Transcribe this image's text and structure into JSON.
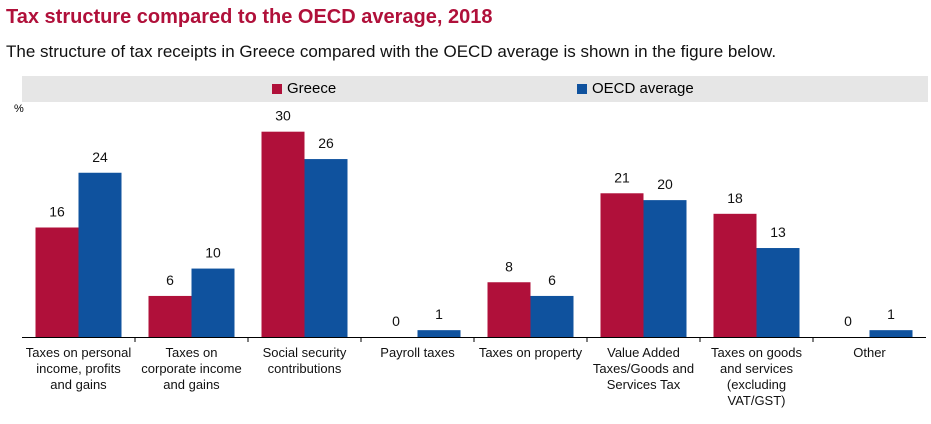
{
  "title": "Tax structure compared to the OECD average, 2018",
  "subtitle": "The structure of tax receipts in Greece compared with the OECD average is shown in the figure below.",
  "unit": "%",
  "colors": {
    "greece": "#b0103a",
    "oecd": "#0f529e",
    "title": "#b0103a",
    "legend_bg": "#e6e6e6"
  },
  "chart_data": {
    "type": "bar",
    "title": "Tax structure compared to the OECD average, 2018",
    "ylabel": "%",
    "ylim": [
      0,
      32
    ],
    "grid": false,
    "legend": "top",
    "categories": [
      "Taxes on personal income, profits and gains",
      "Taxes on corporate income and gains",
      "Social security contributions",
      "Payroll taxes",
      "Taxes on property",
      "Value Added Taxes/Goods and Services Tax",
      "Taxes on goods and services (excluding VAT/GST)",
      "Other"
    ],
    "series": [
      {
        "name": "Greece",
        "values": [
          16,
          6,
          30,
          0,
          8,
          21,
          18,
          0
        ]
      },
      {
        "name": "OECD average",
        "values": [
          24,
          10,
          26,
          1,
          6,
          20,
          13,
          1
        ]
      }
    ]
  }
}
